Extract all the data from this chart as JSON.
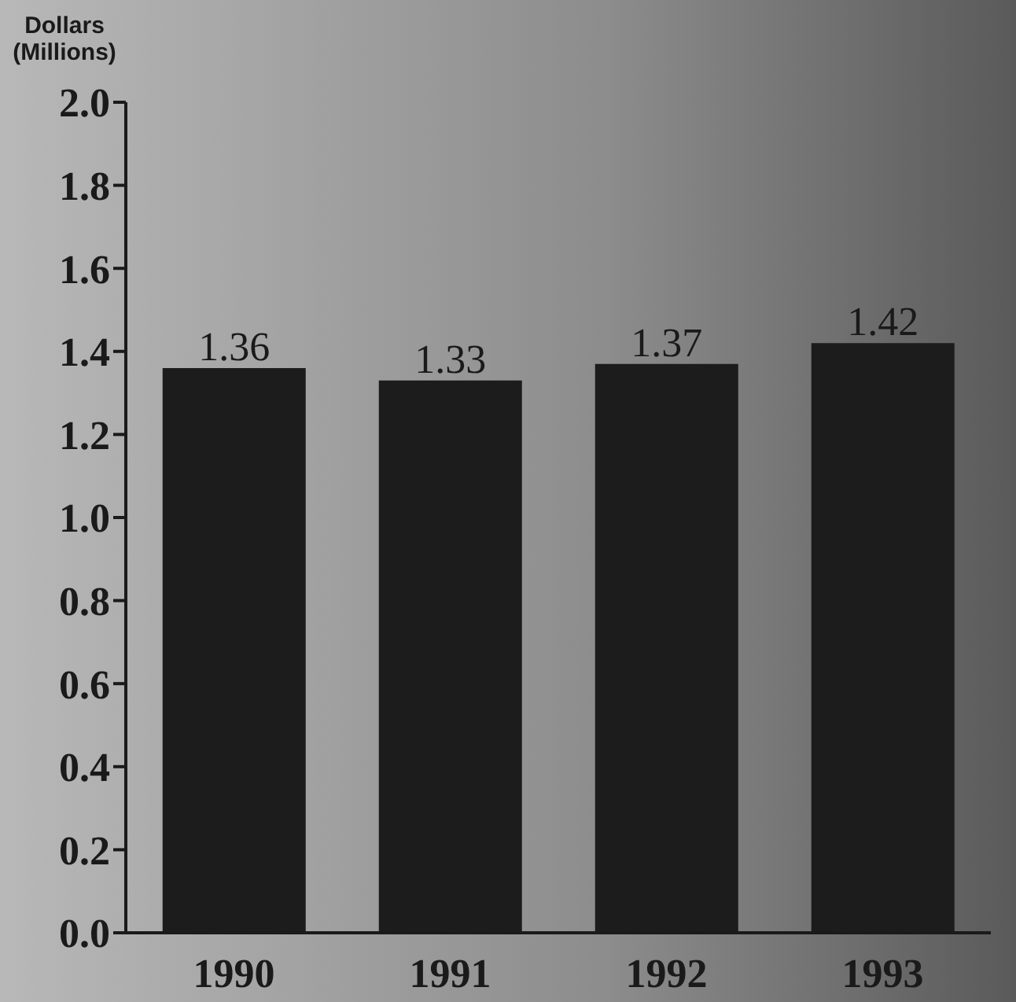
{
  "chart_data": {
    "type": "bar",
    "ylabel": "Dollars (Millions)",
    "categories": [
      "1990",
      "1991",
      "1992",
      "1993"
    ],
    "values": [
      1.36,
      1.33,
      1.37,
      1.42
    ],
    "color": "#1c1c1c",
    "ylim": [
      0,
      2.0
    ],
    "yticks": [
      {
        "value": 0,
        "label": "0.0"
      },
      {
        "value": 0.2,
        "label": "0.2"
      },
      {
        "value": 0.4,
        "label": "0.4"
      },
      {
        "value": 0.6,
        "label": "0.6"
      },
      {
        "value": 0.8,
        "label": "0.8"
      },
      {
        "value": 1.0,
        "label": "1.0"
      },
      {
        "value": 1.2,
        "label": "1.2"
      },
      {
        "value": 1.4,
        "label": "1.4"
      },
      {
        "value": 1.6,
        "label": "1.6"
      },
      {
        "value": 1.8,
        "label": "1.8"
      },
      {
        "value": 2.0,
        "label": "2.0"
      }
    ],
    "data_labels": true,
    "grid": false,
    "legend": false
  }
}
